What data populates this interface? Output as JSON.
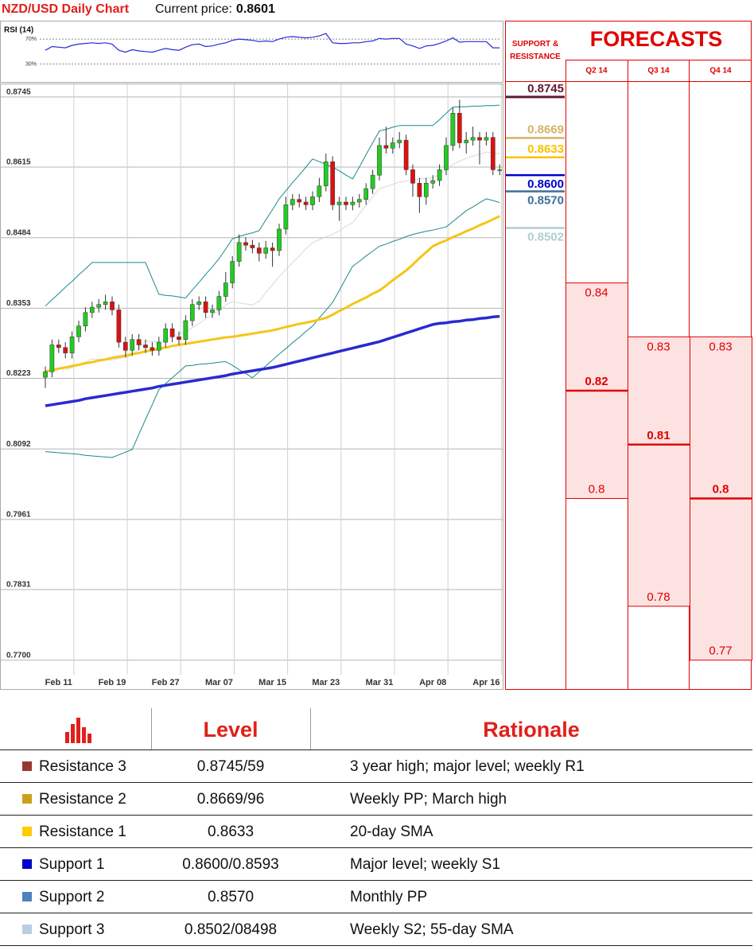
{
  "header": {
    "title": "NZD/USD Daily Chart",
    "price_label": "Current price:",
    "price": 0.8601
  },
  "chart_data": [
    {
      "type": "line",
      "title": "RSI (14)",
      "series": [
        {
          "color": "#2b2bd6",
          "values": [
            52,
            58,
            57,
            56,
            60,
            62,
            63,
            64,
            63,
            64,
            62,
            52,
            49,
            53,
            51,
            50,
            49,
            52,
            55,
            53,
            52,
            57,
            61,
            62,
            58,
            59,
            62,
            64,
            68,
            70,
            69,
            68,
            66,
            67,
            66,
            70,
            73,
            74,
            73,
            72,
            73,
            75,
            79,
            64,
            63,
            63,
            64,
            64,
            66,
            67,
            71,
            70,
            71,
            71,
            62,
            59,
            55,
            59,
            60,
            63,
            67,
            72,
            65,
            66,
            66,
            66,
            66,
            56,
            56
          ]
        }
      ],
      "ylim": [
        5,
        97
      ],
      "yticks": [
        {
          "value": 30,
          "label": "30%"
        },
        {
          "value": 70,
          "label": "70%"
        }
      ],
      "grid": true
    },
    {
      "type": "candlestick",
      "categories": [
        null,
        null,
        "Feb 11",
        null,
        null,
        null,
        null,
        null,
        null,
        null,
        "Feb 19",
        null,
        null,
        null,
        null,
        null,
        null,
        null,
        "Feb 27",
        null,
        null,
        null,
        null,
        null,
        null,
        null,
        "Mar 07",
        null,
        null,
        null,
        null,
        null,
        null,
        null,
        "Mar 15",
        null,
        null,
        null,
        null,
        null,
        null,
        null,
        "Mar 23",
        null,
        null,
        null,
        null,
        null,
        null,
        null,
        "Mar 31",
        null,
        null,
        null,
        null,
        null,
        null,
        null,
        "Apr 08",
        null,
        null,
        null,
        null,
        null,
        null,
        null,
        "Apr 16",
        null,
        null
      ],
      "open": [
        0.8225,
        0.8235,
        0.8285,
        0.828,
        0.827,
        0.83,
        0.832,
        0.8345,
        0.8355,
        0.836,
        0.8365,
        0.835,
        0.829,
        0.8275,
        0.8295,
        0.8285,
        0.828,
        0.8275,
        0.829,
        0.8315,
        0.83,
        0.8295,
        0.833,
        0.836,
        0.8365,
        0.8345,
        0.835,
        0.8375,
        0.84,
        0.844,
        0.8475,
        0.847,
        0.8465,
        0.8455,
        0.8465,
        0.846,
        0.85,
        0.8545,
        0.8555,
        0.855,
        0.8545,
        0.856,
        0.858,
        0.8625,
        0.8545,
        0.855,
        0.8545,
        0.855,
        0.8555,
        0.8575,
        0.86,
        0.8655,
        0.865,
        0.866,
        0.8665,
        0.861,
        0.8585,
        0.856,
        0.8585,
        0.859,
        0.861,
        0.8655,
        0.8715,
        0.866,
        0.8665,
        0.867,
        0.8665,
        0.867,
        0.861
      ],
      "high": [
        0.8245,
        0.8295,
        0.8295,
        0.829,
        0.831,
        0.833,
        0.8355,
        0.8365,
        0.837,
        0.8378,
        0.8375,
        0.836,
        0.83,
        0.8305,
        0.8305,
        0.8295,
        0.829,
        0.83,
        0.8325,
        0.8325,
        0.831,
        0.834,
        0.837,
        0.8375,
        0.8375,
        0.836,
        0.8385,
        0.842,
        0.845,
        0.849,
        0.8485,
        0.848,
        0.8475,
        0.8478,
        0.8475,
        0.851,
        0.856,
        0.8565,
        0.8565,
        0.856,
        0.857,
        0.8595,
        0.864,
        0.8635,
        0.856,
        0.856,
        0.856,
        0.8565,
        0.8585,
        0.861,
        0.867,
        0.869,
        0.867,
        0.868,
        0.8675,
        0.862,
        0.8595,
        0.8595,
        0.86,
        0.862,
        0.867,
        0.8725,
        0.874,
        0.868,
        0.869,
        0.868,
        0.868,
        0.868,
        0.862
      ],
      "low": [
        0.8205,
        0.8225,
        0.827,
        0.826,
        0.826,
        0.829,
        0.831,
        0.8335,
        0.8345,
        0.835,
        0.834,
        0.828,
        0.8262,
        0.8265,
        0.8275,
        0.827,
        0.8265,
        0.8265,
        0.828,
        0.829,
        0.8285,
        0.8285,
        0.832,
        0.835,
        0.8335,
        0.8335,
        0.834,
        0.8365,
        0.839,
        0.843,
        0.846,
        0.8455,
        0.844,
        0.8445,
        0.843,
        0.845,
        0.849,
        0.8535,
        0.854,
        0.8535,
        0.8535,
        0.855,
        0.857,
        0.8535,
        0.8515,
        0.8535,
        0.8535,
        0.854,
        0.8545,
        0.8565,
        0.859,
        0.864,
        0.864,
        0.865,
        0.86,
        0.856,
        0.853,
        0.8545,
        0.8575,
        0.858,
        0.86,
        0.8645,
        0.865,
        0.864,
        0.8655,
        0.862,
        0.8655,
        0.86,
        0.86
      ],
      "close": [
        0.8235,
        0.8285,
        0.828,
        0.827,
        0.83,
        0.832,
        0.8345,
        0.8355,
        0.836,
        0.8365,
        0.835,
        0.829,
        0.8275,
        0.8295,
        0.8285,
        0.828,
        0.8275,
        0.829,
        0.8315,
        0.83,
        0.8295,
        0.833,
        0.836,
        0.8365,
        0.8345,
        0.835,
        0.8375,
        0.84,
        0.844,
        0.8475,
        0.847,
        0.8465,
        0.8455,
        0.8465,
        0.846,
        0.85,
        0.8545,
        0.8555,
        0.855,
        0.8545,
        0.856,
        0.858,
        0.8625,
        0.8545,
        0.855,
        0.8545,
        0.855,
        0.8555,
        0.8575,
        0.86,
        0.8655,
        0.865,
        0.866,
        0.8665,
        0.861,
        0.8585,
        0.856,
        0.8585,
        0.859,
        0.861,
        0.8655,
        0.8715,
        0.866,
        0.8665,
        0.867,
        0.8665,
        0.867,
        0.861,
        0.861
      ],
      "up_color": "#22cc22",
      "down_color": "#dd1111",
      "series": [
        {
          "color": "#d9d9d9",
          "values": [
            null,
            null,
            null,
            0.8238,
            0.8243,
            0.8249,
            0.8253,
            0.8259,
            0.8258,
            0.8258,
            0.8257,
            0.826,
            0.8262,
            0.8265,
            0.8279,
            0.8293,
            0.8291,
            0.8291,
            0.8295,
            0.8299,
            0.8305,
            0.8309,
            0.8317,
            0.8325,
            0.8333,
            0.8341,
            0.8349,
            0.8359,
            0.8365,
            0.8363,
            0.8361,
            0.8359,
            0.8366,
            0.8382,
            0.8397,
            0.8412,
            0.8425,
            0.8438,
            0.845,
            0.8463,
            0.8475,
            0.848,
            0.8485,
            0.849,
            0.8497,
            0.8505,
            0.8512,
            0.8528,
            0.8544,
            0.856,
            0.8575,
            0.8579,
            0.8583,
            0.8587,
            0.8589,
            0.8591,
            0.8593,
            0.8594,
            0.8595,
            0.8602,
            0.861,
            0.862,
            0.8626,
            0.8631,
            0.8635,
            0.8639,
            0.8643,
            0.8641,
            0.864
          ]
        },
        {
          "color": "#1a8a8a",
          "values": [
            0.8357,
            0.8369,
            0.838,
            0.8392,
            0.8403,
            0.8415,
            0.8426,
            0.8438,
            0.8438,
            0.8438,
            0.8438,
            0.8438,
            0.8438,
            0.8438,
            0.8438,
            0.8438,
            0.8408,
            0.8379,
            0.8377,
            0.8376,
            0.8374,
            0.8372,
            0.8387,
            0.8401,
            0.8416,
            0.843,
            0.8445,
            0.8463,
            0.8482,
            0.8486,
            0.849,
            0.8493,
            0.8497,
            0.8517,
            0.8536,
            0.8556,
            0.8571,
            0.8586,
            0.86,
            0.8615,
            0.863,
            0.8625,
            0.862,
            0.8615,
            0.8608,
            0.86,
            0.8593,
            0.8615,
            0.8638,
            0.866,
            0.8682,
            0.8685,
            0.8689,
            0.8692,
            0.8692,
            0.8692,
            0.8692,
            0.8692,
            0.8692,
            0.8703,
            0.8715,
            0.8726,
            0.8727,
            0.8727,
            0.8728,
            0.8728,
            0.8729,
            0.8729,
            0.873
          ]
        },
        {
          "color": "#1a8a8a",
          "values": [
            0.8087,
            0.8086,
            0.8085,
            0.8084,
            0.8083,
            0.8082,
            0.808,
            0.8079,
            0.8078,
            0.8077,
            0.8076,
            0.8081,
            0.8086,
            0.8091,
            0.8119,
            0.8147,
            0.8174,
            0.8202,
            0.8213,
            0.8224,
            0.8235,
            0.8246,
            0.8247,
            0.8249,
            0.825,
            0.8251,
            0.8253,
            0.8254,
            0.8247,
            0.8239,
            0.8232,
            0.8224,
            0.8235,
            0.8246,
            0.8257,
            0.8268,
            0.8278,
            0.8289,
            0.8299,
            0.831,
            0.832,
            0.8335,
            0.8349,
            0.8364,
            0.8386,
            0.8409,
            0.8431,
            0.844,
            0.845,
            0.8459,
            0.8468,
            0.8472,
            0.8477,
            0.8481,
            0.8486,
            0.849,
            0.8493,
            0.8496,
            0.8498,
            0.8501,
            0.8504,
            0.8514,
            0.8524,
            0.8534,
            0.8541,
            0.8549,
            0.8556,
            0.8553,
            0.8549
          ]
        },
        {
          "color": "#f5c518",
          "values": [
            0.8236,
            0.8238,
            0.8241,
            0.8243,
            0.8246,
            0.8248,
            0.8251,
            0.8253,
            0.8256,
            0.8258,
            0.8261,
            0.8263,
            0.8265,
            0.8268,
            0.827,
            0.8273,
            0.8275,
            0.8278,
            0.828,
            0.8283,
            0.8285,
            0.8287,
            0.8289,
            0.8291,
            0.8293,
            0.8295,
            0.8297,
            0.8299,
            0.83,
            0.8302,
            0.8304,
            0.8306,
            0.8308,
            0.831,
            0.8312,
            0.8315,
            0.8318,
            0.8321,
            0.8324,
            0.8326,
            0.8329,
            0.8332,
            0.8335,
            0.8341,
            0.8348,
            0.8354,
            0.8361,
            0.8367,
            0.8373,
            0.838,
            0.8386,
            0.8395,
            0.8405,
            0.8414,
            0.8423,
            0.8434,
            0.8446,
            0.8457,
            0.8468,
            0.8474,
            0.8479,
            0.8485,
            0.849,
            0.8496,
            0.8501,
            0.8507,
            0.8512,
            0.8518,
            0.8524
          ]
        },
        {
          "color": "#2a2ad0",
          "values": [
            0.8172,
            0.8174,
            0.8176,
            0.8178,
            0.818,
            0.8182,
            0.8185,
            0.8187,
            0.8189,
            0.8191,
            0.8193,
            0.8195,
            0.8197,
            0.8199,
            0.8201,
            0.8203,
            0.8205,
            0.8208,
            0.821,
            0.8212,
            0.8214,
            0.8216,
            0.8218,
            0.822,
            0.8222,
            0.8224,
            0.8226,
            0.8228,
            0.8231,
            0.8233,
            0.8235,
            0.8237,
            0.8239,
            0.8241,
            0.8243,
            0.8246,
            0.8249,
            0.8252,
            0.8255,
            0.8258,
            0.8261,
            0.8264,
            0.8267,
            0.827,
            0.8273,
            0.8276,
            0.8279,
            0.8282,
            0.8285,
            0.8288,
            0.8291,
            0.8295,
            0.8299,
            0.8303,
            0.8307,
            0.8311,
            0.8315,
            0.8319,
            0.8323,
            0.8325,
            0.8326,
            0.8328,
            0.8329,
            0.8331,
            0.8332,
            0.8334,
            0.8335,
            0.8337,
            0.8338
          ]
        }
      ],
      "ylim": [
        0.7673,
        0.877
      ],
      "yticks": [
        {
          "value": 0.77,
          "label": "0.7700"
        },
        0.7831,
        0.7961,
        0.8092,
        0.8223,
        0.8353,
        0.8484,
        0.8615,
        0.8745
      ],
      "grid": true
    },
    {
      "type": "levels",
      "title": "SUPPORT & RESISTANCE",
      "values": [
        0.8745,
        0.8669,
        0.8633,
        0.86,
        0.857,
        0.8502
      ],
      "value_labels": [
        "0.8745",
        "0.8669",
        "0.8633",
        "0.8600",
        "0.8570",
        "0.8502"
      ],
      "colors": [
        "#5c1a33",
        "#d4b26a",
        "#f5c400",
        "#0000cc",
        "#3d6f99",
        "#b0cdd0"
      ]
    },
    {
      "type": "range",
      "title": "FORECASTS",
      "categories": [
        "Q2 14",
        "Q3 14",
        "Q4 14"
      ],
      "high": [
        0.84,
        0.83,
        0.83
      ],
      "median": [
        0.82,
        0.81,
        0.8
      ],
      "low": [
        0.8,
        0.78,
        0.77
      ],
      "color": "#e00000",
      "fill": "#fde2e2"
    }
  ],
  "table": {
    "header": [
      "Level",
      "Rationale"
    ],
    "rows": [
      [
        "Resistance 3",
        "0.8745/59",
        "3 year high; major level; weekly R1"
      ],
      [
        "Resistance 2",
        "0.8669/96",
        "Weekly PP; March high"
      ],
      [
        "Resistance 1",
        "0.8633",
        "20-day SMA"
      ],
      [
        "Support 1",
        "0.8600/0.8593",
        "Major level; weekly S1"
      ],
      [
        "Support 2",
        "0.8570",
        "Monthly PP"
      ],
      [
        "Support 3",
        "0.8502/08498",
        "Weekly S2; 55-day SMA"
      ]
    ],
    "colors": [
      "#953735",
      "#c9a21b",
      "#ffcc00",
      "#0000c8",
      "#4f81bd",
      "#b9cde5"
    ]
  }
}
